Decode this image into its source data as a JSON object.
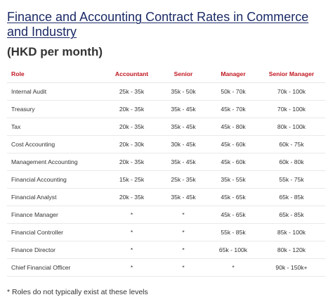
{
  "title": "Finance and Accounting Contract Rates in Commerce and Industry",
  "subtitle": "(HKD per month)",
  "table": {
    "headers": [
      "Role",
      "Accountant",
      "Senior",
      "Manager",
      "Senior Manager"
    ],
    "rows": [
      [
        "Internal Audit",
        "25k - 35k",
        "35k - 50k",
        "50k - 70k",
        "70k - 100k"
      ],
      [
        "Treasury",
        "20k - 35k",
        "35k - 45k",
        "45k - 70k",
        "70k - 100k"
      ],
      [
        "Tax",
        "20k - 35k",
        "35k - 45k",
        "45k - 80k",
        "80k - 100k"
      ],
      [
        "Cost Accounting",
        "20k - 30k",
        "30k - 45k",
        "45k - 60k",
        "60k - 75k"
      ],
      [
        "Management Accounting",
        "20k - 35k",
        "35k - 45k",
        "45k - 60k",
        "60k - 80k"
      ],
      [
        "Financial Accounting",
        "15k - 25k",
        "25k - 35k",
        "35k - 55k",
        "55k - 75k"
      ],
      [
        "Financial Analyst",
        "20k - 35k",
        "35k - 45k",
        "45k - 65k",
        "65k - 85k"
      ],
      [
        "Finance Manager",
        "*",
        "*",
        "45k - 65k",
        "65k - 85k"
      ],
      [
        "Financial Controller",
        "*",
        "*",
        "55k - 85k",
        "85k - 100k"
      ],
      [
        "Finance Director",
        "*",
        "*",
        "65k - 100k",
        "80k - 120k"
      ],
      [
        "Chief Financial Officer",
        "*",
        "*",
        "*",
        "90k - 150k+"
      ]
    ]
  },
  "footnote": "* Roles do not typically exist at these levels",
  "colors": {
    "title": "#1b2a66",
    "header": "#c0161f",
    "text": "#333333"
  }
}
